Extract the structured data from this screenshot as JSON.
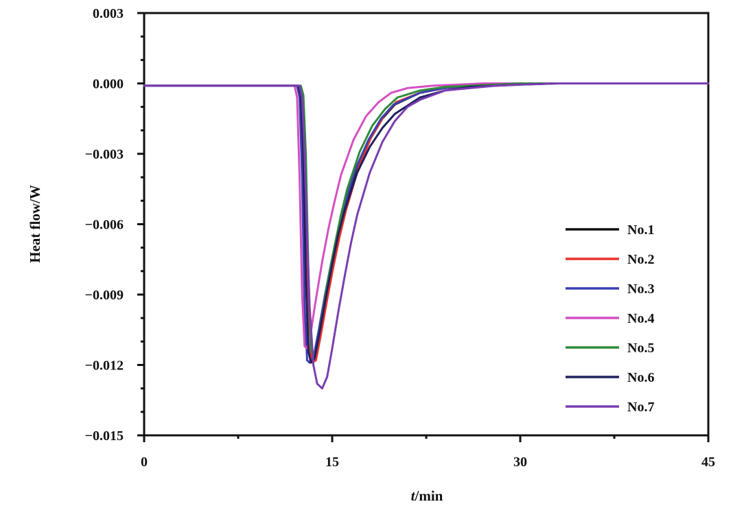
{
  "chart_data": {
    "type": "line",
    "xlabel_italic": "t",
    "xlabel_rest": "/min",
    "ylabel": "Heat flow/W",
    "xlim": [
      0,
      45
    ],
    "ylim": [
      -0.015,
      0.003
    ],
    "x_ticks": [
      0,
      15,
      30,
      45
    ],
    "x_tick_labels": [
      "0",
      "15",
      "30",
      "45"
    ],
    "y_ticks": [
      0.003,
      0.0,
      -0.003,
      -0.006,
      -0.009,
      -0.012,
      -0.015
    ],
    "y_tick_labels": [
      "0.003",
      "0.000",
      "−0.003",
      "−0.006",
      "−0.009",
      "−0.012",
      "−0.015"
    ],
    "grid": false,
    "legend_position": "right",
    "series": [
      {
        "name": "No.1",
        "color": "#111111",
        "x": [
          0,
          12.3,
          12.5,
          12.7,
          12.9,
          13.1,
          13.3,
          13.6,
          14.0,
          14.5,
          15.0,
          15.5,
          16.0,
          17.0,
          18.0,
          19.0,
          20.0,
          22.0,
          24.0,
          26.0,
          28.0,
          30.0,
          33.0,
          45.0
        ],
        "y": [
          -0.0001,
          -0.0001,
          -0.0005,
          -0.003,
          -0.008,
          -0.0112,
          -0.0119,
          -0.0118,
          -0.0107,
          -0.0092,
          -0.0078,
          -0.0065,
          -0.0054,
          -0.0037,
          -0.0024,
          -0.0015,
          -0.0009,
          -0.0004,
          -0.0002,
          -0.0001,
          -5e-05,
          0.0,
          0.0,
          0.0
        ]
      },
      {
        "name": "No.2",
        "color": "#e8302a",
        "x": [
          0,
          12.4,
          12.6,
          12.8,
          13.0,
          13.2,
          13.4,
          13.7,
          14.1,
          14.6,
          15.1,
          15.6,
          16.1,
          17.1,
          18.1,
          19.1,
          20.1,
          22.0,
          24.0,
          26.0,
          28.0,
          30.0,
          33.0,
          45.0
        ],
        "y": [
          -0.0001,
          -0.0001,
          -0.0005,
          -0.003,
          -0.008,
          -0.0112,
          -0.0119,
          -0.0118,
          -0.0107,
          -0.0092,
          -0.0078,
          -0.0065,
          -0.0054,
          -0.0036,
          -0.0023,
          -0.0014,
          -0.0008,
          -0.0004,
          -0.0002,
          -0.0001,
          -5e-05,
          0.0,
          0.0,
          0.0
        ]
      },
      {
        "name": "No.3",
        "color": "#3b3fb0",
        "x": [
          0,
          12.2,
          12.4,
          12.6,
          12.8,
          13.0,
          13.2,
          13.5,
          13.9,
          14.4,
          14.9,
          15.4,
          15.9,
          16.9,
          17.9,
          18.9,
          19.9,
          22.0,
          24.0,
          26.0,
          28.0,
          30.0,
          33.0,
          45.0
        ],
        "y": [
          -0.0001,
          -0.0001,
          -0.0006,
          -0.004,
          -0.0095,
          -0.0118,
          -0.0119,
          -0.0117,
          -0.0106,
          -0.0091,
          -0.0077,
          -0.0064,
          -0.0053,
          -0.0036,
          -0.0024,
          -0.0015,
          -0.0009,
          -0.0004,
          -0.0002,
          -0.0001,
          -5e-05,
          0.0,
          0.0,
          0.0
        ]
      },
      {
        "name": "No.4",
        "color": "#d44fc3",
        "x": [
          0,
          12.0,
          12.2,
          12.4,
          12.6,
          12.8,
          13.0,
          13.3,
          13.7,
          14.2,
          14.7,
          15.2,
          15.7,
          16.7,
          17.7,
          18.7,
          19.7,
          21.0,
          23.0,
          25.0,
          27.0,
          30.0,
          33.0,
          45.0
        ],
        "y": [
          -0.0001,
          -0.0001,
          -0.0006,
          -0.004,
          -0.009,
          -0.0112,
          -0.0113,
          -0.0106,
          -0.0092,
          -0.0076,
          -0.0062,
          -0.005,
          -0.0039,
          -0.0024,
          -0.0014,
          -0.0008,
          -0.0004,
          -0.0002,
          -0.0001,
          -5e-05,
          0.0,
          0.0,
          0.0,
          0.0
        ]
      },
      {
        "name": "No.5",
        "color": "#2f8a3a",
        "x": [
          0,
          12.5,
          12.7,
          12.9,
          13.1,
          13.3,
          13.5,
          13.8,
          14.2,
          14.7,
          15.2,
          15.7,
          16.2,
          17.2,
          18.2,
          19.2,
          20.2,
          22.0,
          24.0,
          26.0,
          28.0,
          30.0,
          33.0,
          45.0
        ],
        "y": [
          -0.0001,
          -0.0001,
          -0.0005,
          -0.003,
          -0.008,
          -0.0113,
          -0.0117,
          -0.0112,
          -0.0099,
          -0.0083,
          -0.0069,
          -0.0056,
          -0.0045,
          -0.0029,
          -0.0018,
          -0.0011,
          -0.0006,
          -0.0003,
          -0.00015,
          -0.0001,
          -5e-05,
          0.0,
          0.0,
          0.0
        ]
      },
      {
        "name": "No.6",
        "color": "#1f1f5e",
        "x": [
          0,
          12.3,
          12.5,
          12.7,
          12.9,
          13.1,
          13.3,
          13.6,
          14.0,
          14.5,
          15.0,
          15.5,
          16.0,
          17.0,
          18.0,
          19.0,
          20.0,
          22.0,
          24.0,
          26.0,
          28.0,
          30.0,
          33.0,
          45.0
        ],
        "y": [
          -0.0001,
          -0.0001,
          -0.0005,
          -0.003,
          -0.0082,
          -0.0114,
          -0.0119,
          -0.0117,
          -0.0106,
          -0.0091,
          -0.0077,
          -0.0064,
          -0.0054,
          -0.0038,
          -0.0027,
          -0.0019,
          -0.0013,
          -0.0006,
          -0.0003,
          -0.00015,
          -0.0001,
          -5e-05,
          0.0,
          0.0
        ]
      },
      {
        "name": "No.7",
        "color": "#7a3db0",
        "x": [
          0,
          12.4,
          12.6,
          12.8,
          13.0,
          13.2,
          13.5,
          13.8,
          14.2,
          14.6,
          15.0,
          15.5,
          16.0,
          16.5,
          17.0,
          18.0,
          19.0,
          20.0,
          21.0,
          22.0,
          24.0,
          26.0,
          28.0,
          30.0,
          33.0,
          45.0
        ],
        "y": [
          -0.0001,
          -0.0001,
          -0.0006,
          -0.003,
          -0.0065,
          -0.0095,
          -0.012,
          -0.0128,
          -0.013,
          -0.0125,
          -0.0113,
          -0.0097,
          -0.0082,
          -0.0068,
          -0.0056,
          -0.0038,
          -0.0025,
          -0.0016,
          -0.001,
          -0.0007,
          -0.0003,
          -0.0002,
          -0.0001,
          -5e-05,
          0.0,
          0.0
        ]
      }
    ]
  }
}
